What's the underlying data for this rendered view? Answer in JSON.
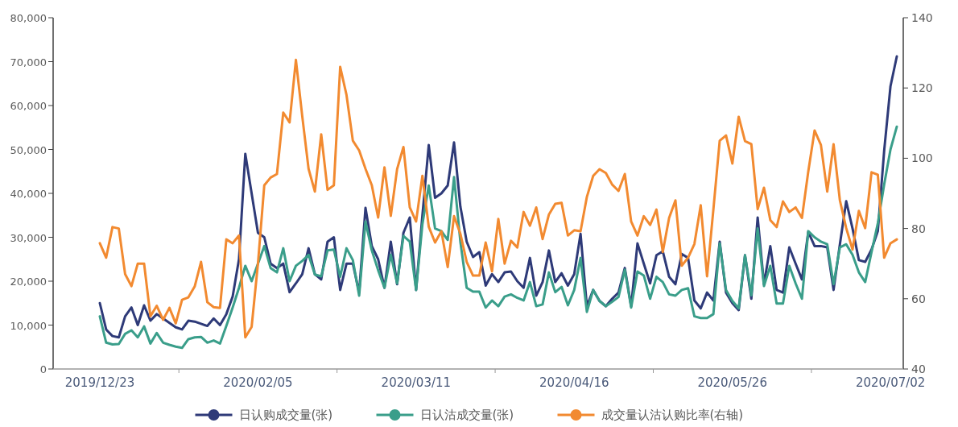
{
  "chart_data": {
    "type": "line",
    "legend": "bottom",
    "grid": false,
    "categories": [
      "2019/12/23",
      null,
      null,
      null,
      null,
      null,
      null,
      null,
      null,
      null,
      null,
      null,
      null,
      null,
      null,
      null,
      null,
      null,
      null,
      null,
      null,
      null,
      null,
      null,
      null,
      "2020/02/05",
      null,
      null,
      null,
      null,
      null,
      null,
      null,
      null,
      null,
      null,
      null,
      null,
      null,
      null,
      null,
      null,
      null,
      null,
      null,
      null,
      null,
      null,
      null,
      null,
      "2020/03/11",
      null,
      null,
      null,
      null,
      null,
      null,
      null,
      null,
      null,
      null,
      null,
      null,
      null,
      null,
      null,
      null,
      null,
      null,
      null,
      null,
      null,
      null,
      null,
      null,
      "2020/04/16",
      null,
      null,
      null,
      null,
      null,
      null,
      null,
      null,
      null,
      null,
      null,
      null,
      null,
      null,
      null,
      null,
      null,
      null,
      null,
      null,
      null,
      null,
      null,
      null,
      "2020/05/26",
      null,
      null,
      null,
      null,
      null,
      null,
      null,
      null,
      null,
      null,
      null,
      null,
      null,
      null,
      null,
      null,
      null,
      null,
      null,
      null,
      null,
      null,
      null,
      null,
      "2020/07/02",
      null
    ],
    "ylim": [
      0,
      80000
    ],
    "yticks": [
      {
        "value": 0,
        "label": "0"
      },
      {
        "value": 10000,
        "label": "10,000"
      },
      {
        "value": 20000,
        "label": "20,000"
      },
      {
        "value": 30000,
        "label": "30,000"
      },
      {
        "value": 40000,
        "label": "40,000"
      },
      {
        "value": 50000,
        "label": "50,000"
      },
      {
        "value": 60000,
        "label": "60,000"
      },
      {
        "value": 70000,
        "label": "70,000"
      },
      {
        "value": 80000,
        "label": "80,000"
      }
    ],
    "y2lim": [
      40,
      140
    ],
    "y2ticks": [
      40,
      60,
      80,
      100,
      120,
      140
    ],
    "series": [
      {
        "name": "日认购成交量(张)",
        "color": "#2e3a78",
        "values": [
          15000,
          9000,
          7500,
          7200,
          12000,
          14000,
          10000,
          14500,
          11000,
          12500,
          11500,
          10500,
          9500,
          9000,
          11000,
          10800,
          10300,
          9800,
          11500,
          10000,
          12500,
          16500,
          25000,
          49000,
          40000,
          31000,
          30000,
          24000,
          23000,
          24000,
          17500,
          19500,
          21600,
          27500,
          21600,
          20400,
          29000,
          30000,
          18000,
          24000,
          24000,
          17400,
          36700,
          28000,
          25000,
          18500,
          29000,
          19300,
          31000,
          34500,
          18000,
          35000,
          51000,
          39000,
          40000,
          41800,
          51600,
          37000,
          29000,
          25500,
          26600,
          19000,
          21600,
          19800,
          22000,
          22200,
          20000,
          18500,
          25300,
          16700,
          19800,
          27000,
          19800,
          21800,
          19000,
          21600,
          30800,
          14300,
          18000,
          15500,
          14300,
          16000,
          17400,
          23000,
          14300,
          28600,
          24000,
          19500,
          25900,
          26800,
          21000,
          19300,
          26200,
          25300,
          15600,
          13800,
          17400,
          15600,
          29000,
          17400,
          15000,
          13400,
          25900,
          16000,
          34500,
          19300,
          28000,
          18000,
          17400,
          27700,
          24000,
          20400,
          31200,
          28000,
          28000,
          27700,
          18000,
          28400,
          38200,
          32000,
          24800,
          24400,
          27200,
          31400,
          49700,
          64400,
          71200
        ]
      },
      {
        "name": "日认沽成交量(张)",
        "color": "#3a9e8a",
        "values": [
          12000,
          6000,
          5600,
          5700,
          8000,
          8800,
          7200,
          9700,
          5800,
          8200,
          6000,
          5500,
          5100,
          4800,
          6800,
          7200,
          7300,
          6000,
          6500,
          5800,
          9800,
          14000,
          18500,
          23500,
          20000,
          24000,
          28000,
          23000,
          22000,
          27500,
          20000,
          23500,
          24600,
          26000,
          21500,
          21100,
          27000,
          27200,
          21000,
          27500,
          24800,
          16700,
          33600,
          27000,
          22500,
          18500,
          26000,
          19500,
          30300,
          29000,
          18000,
          33000,
          41800,
          32000,
          31400,
          29400,
          43700,
          29000,
          18500,
          17600,
          17600,
          14000,
          15600,
          14300,
          16500,
          17000,
          16200,
          15600,
          19800,
          14300,
          14700,
          22000,
          17500,
          18700,
          14500,
          18000,
          25300,
          13000,
          18000,
          15500,
          14300,
          15300,
          16400,
          22600,
          14000,
          22200,
          21300,
          16000,
          21000,
          19800,
          17000,
          16700,
          18000,
          18400,
          12000,
          11600,
          11600,
          12500,
          28600,
          18000,
          15500,
          13800,
          25900,
          16800,
          32000,
          18900,
          23500,
          14900,
          14900,
          23500,
          19500,
          16000,
          31400,
          30000,
          29000,
          28400,
          19300,
          27700,
          28400,
          26000,
          22000,
          19800,
          26600,
          33200,
          42000,
          50000,
          55200
        ]
      },
      {
        "name": "成交量认沽认购比率(右轴)",
        "color": "#f28a30",
        "axis": "y2",
        "values": [
          75.8,
          71.7,
          80.4,
          80,
          67,
          63.6,
          70,
          70,
          55,
          58,
          54,
          57.4,
          53,
          59.7,
          60.4,
          63.5,
          70.5,
          59,
          57.6,
          57.4,
          76.9,
          75.8,
          78,
          49,
          52,
          70,
          92.3,
          94.5,
          95.5,
          113,
          110.2,
          128,
          112,
          97,
          90.5,
          106.8,
          91,
          92.3,
          126,
          118,
          105,
          102.2,
          97,
          92.3,
          83.1,
          97.4,
          83.6,
          96.9,
          103.2,
          86,
          82,
          95,
          80.5,
          76,
          79.2,
          69,
          83.5,
          78.5,
          70.5,
          66.6,
          66.6,
          76,
          67.8,
          82.7,
          70,
          76.5,
          74.6,
          84.7,
          80.8,
          86,
          77,
          84,
          87,
          87.3,
          78,
          79.5,
          79.2,
          89,
          95,
          96.9,
          95.8,
          92.5,
          90.7,
          95.5,
          82,
          78,
          83.5,
          81,
          85.4,
          73.3,
          83,
          88,
          69.4,
          71.7,
          75.6,
          86.6,
          66.4,
          85.4,
          105,
          106.5,
          98.5,
          111.8,
          104.9,
          104,
          85.5,
          91.6,
          82.4,
          80.4,
          87.7,
          84.7,
          86,
          83,
          96.2,
          107.9,
          103.8,
          90.5,
          104,
          88,
          80.1,
          74,
          85,
          80.1,
          96,
          95.3,
          71.7,
          75.8,
          76.9
        ]
      }
    ]
  }
}
